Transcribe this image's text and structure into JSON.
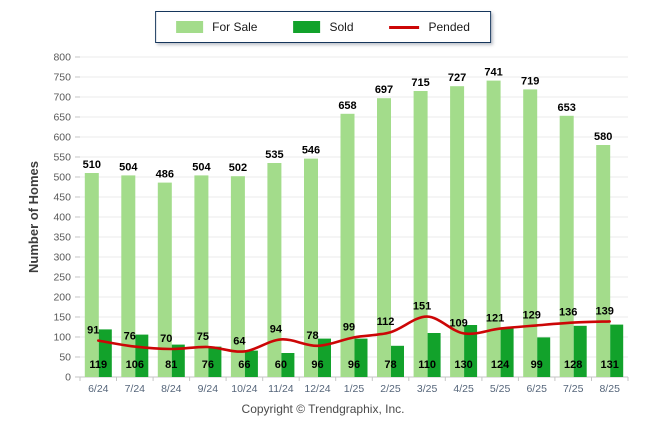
{
  "footer": {
    "copyright": "Copyright © Trendgraphix, Inc."
  },
  "chart_data": {
    "type": "bar",
    "title": "",
    "xlabel": "",
    "ylabel": "Number of Homes",
    "ylim": [
      0,
      800
    ],
    "ytick_step": 50,
    "grid": true,
    "legend_position": "top-center",
    "categories": [
      "6/24",
      "7/24",
      "8/24",
      "9/24",
      "10/24",
      "11/24",
      "12/24",
      "1/25",
      "2/25",
      "3/25",
      "4/25",
      "5/25",
      "6/25",
      "7/25",
      "8/25"
    ],
    "series": [
      {
        "name": "For Sale",
        "type": "bar",
        "color": "#a3dc8b",
        "values": [
          510,
          504,
          486,
          504,
          502,
          535,
          546,
          658,
          697,
          715,
          727,
          741,
          719,
          653,
          580
        ]
      },
      {
        "name": "Sold",
        "type": "bar",
        "color": "#12a22b",
        "values": [
          119,
          106,
          81,
          76,
          66,
          60,
          96,
          96,
          78,
          110,
          130,
          124,
          99,
          128,
          131
        ]
      },
      {
        "name": "Pended",
        "type": "line",
        "color": "#cc0606",
        "values": [
          91,
          76,
          70,
          75,
          64,
          94,
          78,
          99,
          112,
          151,
          109,
          121,
          129,
          136,
          139
        ]
      }
    ],
    "colors": {
      "grid": "#ebebeb",
      "axis": "#c6c6c6",
      "bar_label": "#000000",
      "y_tick_label": "#595959",
      "x_tick_label": "#55657a",
      "axis_title": "#3c3c3c"
    }
  }
}
